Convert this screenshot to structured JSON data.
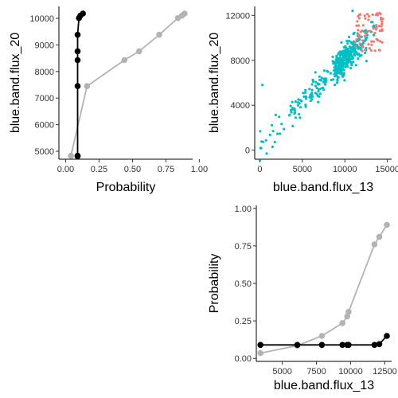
{
  "chart_data": [
    {
      "type": "line",
      "panel": "top-left",
      "xlabel": "Probability",
      "ylabel": "blue.band.flux_20",
      "xlim": [
        -0.05,
        0.95
      ],
      "ylim": [
        4700,
        10450
      ],
      "xticks": [
        "0.00",
        "0.25",
        "0.50",
        "0.75",
        "1.00"
      ],
      "yticks": [
        "5000",
        "6000",
        "7000",
        "8000",
        "9000",
        "10000"
      ],
      "grid": false,
      "series": [
        {
          "color": "#b3b3b3",
          "points": [
            [
              0.04,
              4830
            ],
            [
              0.16,
              7450
            ],
            [
              0.44,
              8430
            ],
            [
              0.55,
              8760
            ],
            [
              0.7,
              9380
            ],
            [
              0.84,
              10010
            ],
            [
              0.87,
              10100
            ],
            [
              0.89,
              10180
            ]
          ]
        },
        {
          "color": "#000000",
          "points": [
            [
              0.09,
              4810
            ],
            [
              0.09,
              4830
            ],
            [
              0.09,
              7450
            ],
            [
              0.09,
              8430
            ],
            [
              0.09,
              8760
            ],
            [
              0.09,
              9380
            ],
            [
              0.1,
              10010
            ],
            [
              0.11,
              10100
            ],
            [
              0.13,
              10180
            ]
          ]
        }
      ]
    },
    {
      "type": "scatter",
      "panel": "top-right",
      "xlabel": "blue.band.flux_13",
      "ylabel": "blue.band.flux_20",
      "xlim": [
        -600,
        15500
      ],
      "ylim": [
        -800,
        12800
      ],
      "xticks": [
        "0",
        "5000",
        "10000",
        "15000"
      ],
      "yticks": [
        "0",
        "4000",
        "8000",
        "12000"
      ],
      "grid": false,
      "groups": [
        {
          "color": "#00bfc4",
          "approx_count": 420
        },
        {
          "color": "#f8766d",
          "approx_count": 70
        }
      ]
    },
    {
      "type": "line",
      "panel": "bottom-right",
      "xlabel": "blue.band.flux_13",
      "ylabel": "Probability",
      "xlim": [
        3100,
        13000
      ],
      "ylim": [
        -0.02,
        1.02
      ],
      "xticks": [
        "5000",
        "7500",
        "10000",
        "12500"
      ],
      "yticks": [
        "0.00",
        "0.25",
        "0.50",
        "0.75",
        "1.00"
      ],
      "grid": false,
      "series": [
        {
          "color": "#b3b3b3",
          "points": [
            [
              3400,
              0.035
            ],
            [
              6100,
              0.085
            ],
            [
              7900,
              0.15
            ],
            [
              9400,
              0.235
            ],
            [
              9750,
              0.28
            ],
            [
              9850,
              0.31
            ],
            [
              11750,
              0.76
            ],
            [
              12100,
              0.81
            ],
            [
              12650,
              0.89
            ]
          ]
        },
        {
          "color": "#000000",
          "points": [
            [
              3400,
              0.09
            ],
            [
              6100,
              0.09
            ],
            [
              7900,
              0.09
            ],
            [
              9400,
              0.09
            ],
            [
              9750,
              0.09
            ],
            [
              9850,
              0.09
            ],
            [
              11750,
              0.09
            ],
            [
              12100,
              0.095
            ],
            [
              12650,
              0.15
            ]
          ]
        }
      ]
    }
  ]
}
